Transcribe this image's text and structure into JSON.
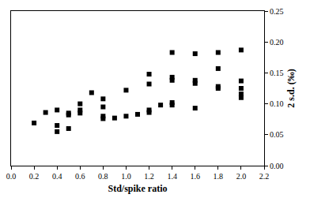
{
  "chart_data": {
    "type": "scatter",
    "x_label": "Std/spike ratio",
    "y_label": "2 s.d. (‰)",
    "x": [
      0.2,
      0.3,
      0.4,
      0.4,
      0.4,
      0.5,
      0.5,
      0.5,
      0.6,
      0.6,
      0.6,
      0.7,
      0.8,
      0.8,
      0.8,
      0.8,
      0.9,
      1.0,
      1.0,
      1.1,
      1.2,
      1.2,
      1.2,
      1.2,
      1.3,
      1.4,
      1.4,
      1.4,
      1.4,
      1.4,
      1.6,
      1.6,
      1.6,
      1.6,
      1.8,
      1.8,
      1.8,
      1.8,
      2.0,
      2.0,
      2.0,
      2.0,
      2.0
    ],
    "values": [
      0.069,
      0.086,
      0.09,
      0.065,
      0.055,
      0.085,
      0.082,
      0.06,
      0.1,
      0.09,
      0.085,
      0.118,
      0.108,
      0.095,
      0.08,
      0.076,
      0.077,
      0.122,
      0.08,
      0.083,
      0.148,
      0.132,
      0.09,
      0.086,
      0.098,
      0.183,
      0.143,
      0.138,
      0.102,
      0.098,
      0.181,
      0.138,
      0.133,
      0.093,
      0.183,
      0.157,
      0.128,
      0.125,
      0.187,
      0.137,
      0.125,
      0.116,
      0.11
    ],
    "color": "#000000",
    "marker": "square",
    "xlim": [
      0,
      2.2
    ],
    "xticks": [
      {
        "value": 0,
        "label": "0.0"
      },
      {
        "value": 0.2,
        "label": "0.2"
      },
      {
        "value": 0.4,
        "label": "0.4"
      },
      {
        "value": 0.6,
        "label": "0.6"
      },
      {
        "value": 0.8,
        "label": "0.8"
      },
      {
        "value": 1,
        "label": "1.0"
      },
      {
        "value": 1.2,
        "label": "1.2"
      },
      {
        "value": 1.4,
        "label": "1.4"
      },
      {
        "value": 1.6,
        "label": "1.6"
      },
      {
        "value": 1.8,
        "label": "1.8"
      },
      {
        "value": 2,
        "label": "2.0"
      },
      {
        "value": 2.2,
        "label": "2.2"
      }
    ],
    "ylim": [
      0,
      0.25
    ],
    "yticks": [
      {
        "value": 0,
        "label": "0.00"
      },
      {
        "value": 0.05,
        "label": "0.05"
      },
      {
        "value": 0.1,
        "label": "0.10"
      },
      {
        "value": 0.15,
        "label": "0.15"
      },
      {
        "value": 0.2,
        "label": "0.20"
      },
      {
        "value": 0.25,
        "label": "0.25"
      }
    ],
    "grid": false
  }
}
